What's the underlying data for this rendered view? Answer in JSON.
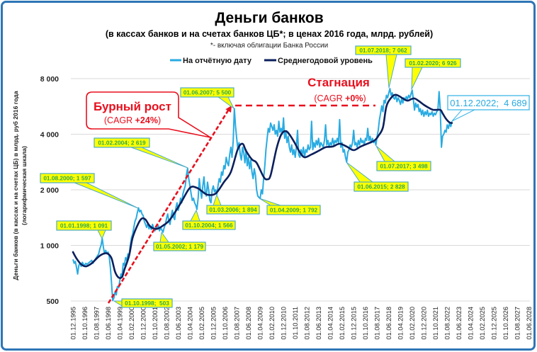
{
  "header": {
    "title": "Деньги банков",
    "subtitle": "(в кассах банков и на счетах банков ЦБ*; в ценах 2016 года, млрд. рублей)",
    "footnote": "*- включая облигации Банка России"
  },
  "legend": [
    {
      "name": "На отчётную дату",
      "color": "#29ABE2"
    },
    {
      "name": "Среднегодовой уровень",
      "color": "#0B1F5C"
    }
  ],
  "y_axis_title": {
    "line1": "Деньги банков (в кассах и на счетах ЦБ) в млрд. руб 2016 года",
    "line2": "(логарифмическая шкала)"
  },
  "growth_bubble": {
    "title": "Бурный рост",
    "cagr_open": "(CAGR ",
    "cagr_value": "+24%",
    "cagr_close": ")",
    "color": "#E8101E"
  },
  "stagnation_label": {
    "title": "Стагнация",
    "cagr_open": "(CAGR ",
    "cagr_value": "+0%",
    "cagr_close": ")",
    "color": "#E8101E"
  },
  "chart_data": {
    "type": "line",
    "title": "Деньги банков",
    "subtitle": "(в кассах банков и на счетах банков ЦБ*; в ценах 2016 года, млрд. рублей)",
    "xlabel": "",
    "ylabel": "Деньги банков (в кассах и на счетах ЦБ) в млрд. руб 2016 года (логарифмическая шкала)",
    "y_scale": "log",
    "ylim": [
      500,
      8000
    ],
    "grid": true,
    "legend_position": "top",
    "y_ticks": [
      {
        "value": 8000,
        "label": "8 000"
      },
      {
        "value": 4000,
        "label": "4 000"
      },
      {
        "value": 2000,
        "label": "2 000"
      },
      {
        "value": 1000,
        "label": "1 000"
      },
      {
        "value": 500,
        "label": "500"
      }
    ],
    "x_tick_labels": [
      "01.12.1995",
      "01.10.1996",
      "01.08.1997",
      "01.06.1998",
      "01.04.1999",
      "01.02.2000",
      "01.12.2000",
      "01.10.2001",
      "01.08.2002",
      "01.06.2003",
      "01.04.2004",
      "01.02.2005",
      "01.12.2005",
      "01.10.2006",
      "01.08.2007",
      "01.06.2008",
      "01.04.2009",
      "01.02.2010",
      "01.12.2010",
      "01.10.2011",
      "01.08.2012",
      "01.06.2013",
      "01.04.2014",
      "01.02.2015",
      "01.12.2015",
      "01.10.2016",
      "01.08.2017",
      "01.06.2018",
      "01.04.2019",
      "01.02.2020",
      "01.12.2020",
      "01.10.2021",
      "01.08.2022",
      "01.06.2023",
      "01.04.2024",
      "01.02.2025",
      "01.12.2025",
      "01.10.2026",
      "01.08.2027",
      "01.06.2028"
    ],
    "series": [
      {
        "name": "На отчётную дату",
        "color": "#29ABE2",
        "start": "1995-12",
        "frequency": "monthly",
        "values": [
          840,
          800,
          820,
          760,
          700,
          780,
          800,
          770,
          810,
          790,
          780,
          800,
          790,
          800,
          810,
          820,
          830,
          800,
          820,
          840,
          860,
          880,
          900,
          960,
          1000,
          1091,
          980,
          900,
          940,
          900,
          920,
          870,
          760,
          620,
          503,
          520,
          560,
          540,
          600,
          590,
          640,
          700,
          690,
          800,
          780,
          860,
          830,
          900,
          880,
          1000,
          1100,
          1150,
          1250,
          1350,
          1400,
          1500,
          1597,
          1520,
          1550,
          1480,
          1450,
          1350,
          1300,
          1250,
          1320,
          1230,
          1270,
          1220,
          1300,
          1240,
          1200,
          1260,
          1230,
          1280,
          1200,
          1250,
          1210,
          1179,
          1250,
          1300,
          1400,
          1480,
          1350,
          1300,
          1450,
          1550,
          1420,
          1380,
          1600,
          1700,
          1550,
          1650,
          1800,
          1700,
          1900,
          2000,
          2100,
          2400,
          2619,
          2300,
          2100,
          1900,
          1750,
          1800,
          1700,
          1650,
          1566,
          1800,
          2300,
          2000,
          1800,
          2100,
          2350,
          1950,
          1850,
          2200,
          2000,
          1750,
          1700,
          2000,
          2100,
          1950,
          2000,
          1894,
          2100,
          2300,
          2200,
          2500,
          2400,
          2700,
          2600,
          3000,
          2800,
          2700,
          3100,
          3400,
          3000,
          3700,
          5500,
          4400,
          3800,
          3300,
          3600,
          3100,
          2900,
          3400,
          3200,
          2800,
          3300,
          2700,
          3000,
          2600,
          2900,
          2500,
          2300,
          2600,
          2400,
          2000,
          1850,
          1820,
          1792,
          2000,
          1900,
          2300,
          2700,
          3300,
          3800,
          4300,
          4100,
          4600,
          4400,
          4200,
          4500,
          4000,
          4200,
          3900,
          4700,
          4100,
          4300,
          4000,
          4900,
          3800,
          4100,
          3600,
          3900,
          3400,
          3200,
          3500,
          3100,
          3300,
          3000,
          3400,
          4200,
          3100,
          3000,
          3300,
          3100,
          3400,
          3000,
          3300,
          3200,
          3500,
          3300,
          3400,
          4700,
          3300,
          3600,
          3400,
          3700,
          3500,
          3800,
          3400,
          3600,
          3500,
          3400,
          3700,
          4500,
          3500,
          3700,
          3400,
          3600,
          3500,
          3800,
          3500,
          3700,
          3600,
          3800,
          3600,
          4800,
          3400,
          3600,
          3200,
          3300,
          3000,
          2828,
          3200,
          3300,
          3500,
          3400,
          3600,
          4200,
          3500,
          3600,
          3400,
          3700,
          3500,
          3800,
          3600,
          3700,
          3500,
          3800,
          3700,
          4300,
          3700,
          3900,
          3600,
          3800,
          3600,
          3700,
          3498,
          3900,
          4200,
          4800,
          5200,
          5700,
          5300,
          6100,
          5900,
          6500,
          6300,
          6700,
          7062,
          6500,
          6700,
          6300,
          6200,
          6500,
          6000,
          6300,
          6100,
          5800,
          6200,
          5900,
          6300,
          6100,
          6400,
          6200,
          6500,
          6300,
          6600,
          6926,
          6200,
          5400,
          5900,
          5600,
          5800,
          5300,
          5500,
          5100,
          5400,
          5000,
          5300,
          5100,
          5400,
          5000,
          5200,
          5100,
          5300,
          5000,
          5200,
          5100,
          5300,
          5400,
          6800,
          5500,
          3400,
          3900,
          4000,
          4200,
          4100,
          4500,
          4300,
          4600,
          4400,
          4689
        ]
      },
      {
        "name": "Среднегодовой уровень",
        "color": "#0B1F5C",
        "points": [
          [
            "1995-12",
            920
          ],
          [
            "1996-03",
            850
          ],
          [
            "1996-07",
            790
          ],
          [
            "1996-11",
            770
          ],
          [
            "1997-04",
            800
          ],
          [
            "1997-10",
            870
          ],
          [
            "1998-03",
            905
          ],
          [
            "1998-06",
            900
          ],
          [
            "1998-09",
            850
          ],
          [
            "1998-12",
            720
          ],
          [
            "1999-03",
            670
          ],
          [
            "1999-06",
            675
          ],
          [
            "1999-08",
            740
          ],
          [
            "1999-12",
            880
          ],
          [
            "2000-03",
            1100
          ],
          [
            "2000-08",
            1320
          ],
          [
            "2000-11",
            1400
          ],
          [
            "2001-02",
            1380
          ],
          [
            "2001-05",
            1290
          ],
          [
            "2001-08",
            1240
          ],
          [
            "2001-12",
            1230
          ],
          [
            "2002-05",
            1280
          ],
          [
            "2002-11",
            1380
          ],
          [
            "2003-08",
            1690
          ],
          [
            "2004-04",
            2050
          ],
          [
            "2004-10",
            2050
          ],
          [
            "2005-02",
            1970
          ],
          [
            "2005-07",
            1880
          ],
          [
            "2006-02",
            1910
          ],
          [
            "2006-09",
            2200
          ],
          [
            "2007-03",
            2500
          ],
          [
            "2007-09",
            3330
          ],
          [
            "2008-01",
            3550
          ],
          [
            "2008-04",
            3250
          ],
          [
            "2008-09",
            2920
          ],
          [
            "2009-01",
            2800
          ],
          [
            "2009-07",
            2350
          ],
          [
            "2009-10",
            2280
          ],
          [
            "2010-01",
            2400
          ],
          [
            "2010-06",
            3340
          ],
          [
            "2010-10",
            3980
          ],
          [
            "2011-02",
            4160
          ],
          [
            "2011-06",
            3910
          ],
          [
            "2011-10",
            3550
          ],
          [
            "2012-02",
            3190
          ],
          [
            "2012-06",
            3000
          ],
          [
            "2012-12",
            3110
          ],
          [
            "2013-06",
            3250
          ],
          [
            "2013-12",
            3400
          ],
          [
            "2014-06",
            3430
          ],
          [
            "2014-12",
            3550
          ],
          [
            "2015-06",
            3430
          ],
          [
            "2015-12",
            3280
          ],
          [
            "2016-06",
            3430
          ],
          [
            "2017-01",
            3580
          ],
          [
            "2017-06",
            3710
          ],
          [
            "2017-09",
            3910
          ],
          [
            "2018-01",
            4350
          ],
          [
            "2018-04",
            5670
          ],
          [
            "2018-08",
            6300
          ],
          [
            "2018-11",
            6530
          ],
          [
            "2019-02",
            6480
          ],
          [
            "2019-06",
            6250
          ],
          [
            "2019-10",
            6080
          ],
          [
            "2020-01",
            6180
          ],
          [
            "2020-04",
            6250
          ],
          [
            "2020-08",
            6030
          ],
          [
            "2020-12",
            5770
          ],
          [
            "2021-04",
            5570
          ],
          [
            "2021-08",
            5420
          ],
          [
            "2022-02",
            5420
          ],
          [
            "2022-04",
            5190
          ],
          [
            "2022-07",
            4840
          ],
          [
            "2022-10",
            4630
          ],
          [
            "2022-12",
            4600
          ]
        ]
      }
    ],
    "annotations": [
      {
        "date": "01.07.2018",
        "value": 7062,
        "label": "01.07.2018; 7 062"
      },
      {
        "date": "01.02.2020",
        "value": 6926,
        "label": "01.02.2020; 6 926"
      },
      {
        "date": "01.06.2007",
        "value": 5500,
        "label": "01.06.2007; 5 500"
      },
      {
        "date": "01.02.2004",
        "value": 2619,
        "label": "01.02.2004; 2 619"
      },
      {
        "date": "01.08.2000",
        "value": 1597,
        "label": "01.08.2000; 1 597"
      },
      {
        "date": "01.01.1998",
        "value": 1091,
        "label": "01.01.1998; 1 091"
      },
      {
        "date": "01.10.1998",
        "value": 503,
        "label": "01.10.1998;  503"
      },
      {
        "date": "01.05.2002",
        "value": 1179,
        "label": "01.05.2002; 1 179"
      },
      {
        "date": "01.10.2004",
        "value": 1566,
        "label": "01.10.2004; 1 566"
      },
      {
        "date": "01.03.2006",
        "value": 1894,
        "label": "01.03.2006; 1 894"
      },
      {
        "date": "01.04.2009",
        "value": 1792,
        "label": "01.04.2009; 1 792"
      },
      {
        "date": "01.06.2015",
        "value": 2828,
        "label": "01.06.2015; 2 828"
      },
      {
        "date": "01.07.2017",
        "value": 3498,
        "label": "01.07.2017; 3 498"
      },
      {
        "date": "01.12.2022",
        "value": 4689,
        "label": "01.12.2022;  4 689"
      }
    ],
    "trend_lines": [
      {
        "name": "Бурный рост",
        "from": [
          "1998-09",
          490
        ],
        "to": [
          "2007-05",
          5400
        ],
        "cagr": "+24%",
        "style": "dashed-arrow",
        "color": "#E8101E"
      },
      {
        "name": "Стагнация",
        "from": [
          "2007-06",
          5700
        ],
        "to": [
          "2019-06",
          5700
        ],
        "cagr": "+0%",
        "style": "dashed",
        "color": "#E8101E"
      }
    ]
  }
}
